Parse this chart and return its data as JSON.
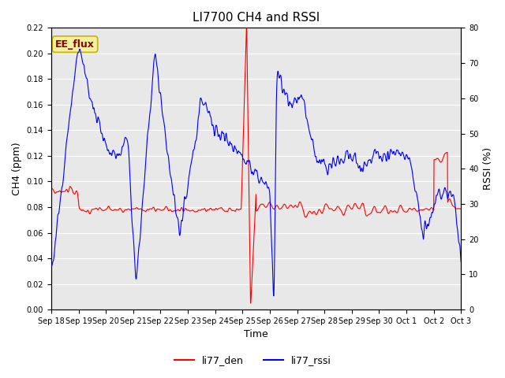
{
  "title": "LI7700 CH4 and RSSI",
  "xlabel": "Time",
  "ylabel_left": "CH4 (ppm)",
  "ylabel_right": "RSSI (%)",
  "ylim_left": [
    0.0,
    0.22
  ],
  "ylim_right": [
    0,
    80
  ],
  "yticks_left": [
    0.0,
    0.02,
    0.04,
    0.06,
    0.08,
    0.1,
    0.12,
    0.14,
    0.16,
    0.18,
    0.2,
    0.22
  ],
  "yticks_right": [
    0,
    10,
    20,
    30,
    40,
    50,
    60,
    70,
    80
  ],
  "background_color": "#e8e8e8",
  "grid_color": "#ffffff",
  "legend_items": [
    "li77_den",
    "li77_rssi"
  ],
  "legend_colors": [
    "#ff0000",
    "#0000ff"
  ],
  "annotation_text": "EE_flux",
  "annotation_color": "#8B0000",
  "annotation_bg": "#f5f0a0",
  "annotation_border": "#c8b400",
  "tick_labels": [
    "Sep 18",
    "Sep 19",
    "Sep 20",
    "Sep 21",
    "Sep 22",
    "Sep 23",
    "Sep 24",
    "Sep 25",
    "Sep 26",
    "Sep 27",
    "Sep 28",
    "Sep 29",
    "Sep 30",
    "Oct 1",
    "Oct 2",
    "Oct 3"
  ]
}
